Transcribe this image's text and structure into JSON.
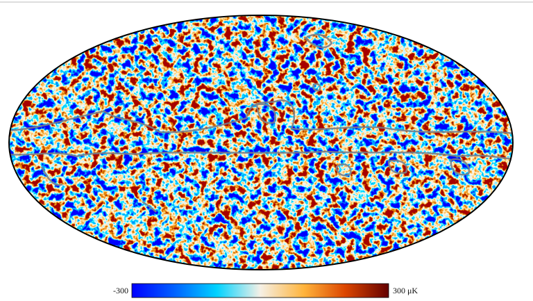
{
  "colorbar": {
    "labels": [
      "-300",
      "300 μK"
    ]
  }
}
